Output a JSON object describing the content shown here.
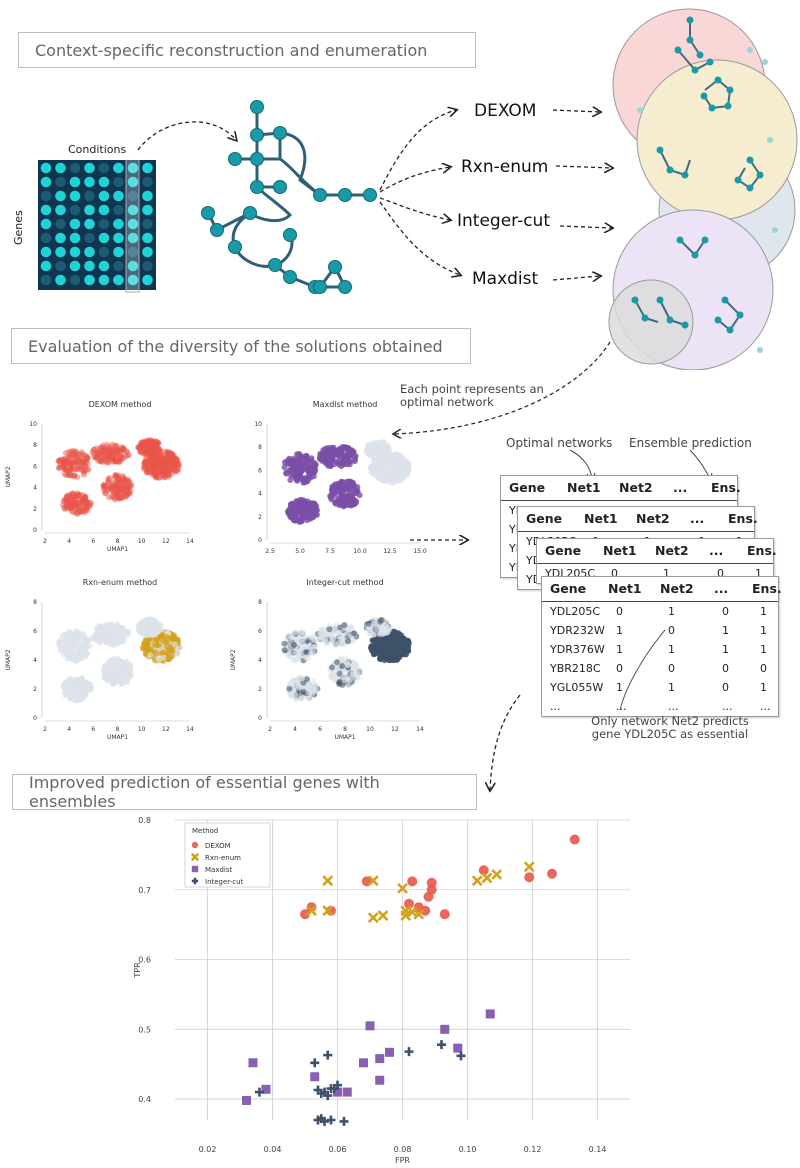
{
  "sections": {
    "reconstruction": "Context-specific reconstruction and enumeration",
    "diversity": "Evaluation of the diversity of the solutions obtained",
    "prediction": "Improved prediction of essential genes with ensembles"
  },
  "matrix": {
    "conditions_label": "Conditions",
    "genes_label": "Genes"
  },
  "methods": [
    "DEXOM",
    "Rxn-enum",
    "Integer-cut",
    "Maxdist"
  ],
  "callouts": {
    "point": [
      "Each point represents an",
      "optimal network"
    ],
    "optimal_networks": "Optimal networks",
    "ensemble_prediction": "Ensemble prediction",
    "net2": [
      "Only network Net2 predicts",
      "gene YDL205C as essential"
    ]
  },
  "umap": [
    {
      "title": "DEXOM method",
      "xlabel": "UMAP1",
      "ylabel": "UMAP2",
      "yticks": [
        "0",
        "2",
        "4",
        "6",
        "8",
        "10"
      ],
      "xticks": [
        "2",
        "4",
        "6",
        "8",
        "10",
        "12",
        "14"
      ]
    },
    {
      "title": "Maxdist method",
      "xlabel": "",
      "ylabel": "",
      "yticks": [
        "0",
        "2",
        "4",
        "6",
        "8",
        "10"
      ],
      "xticks": [
        "2.5",
        "5.0",
        "7.5",
        "10.0",
        "12.5",
        "15.0"
      ]
    },
    {
      "title": "Rxn-enum method",
      "xlabel": "UMAP1",
      "ylabel": "UMAP2",
      "yticks": [
        "0",
        "2",
        "4",
        "6",
        "8"
      ],
      "xticks": [
        "2",
        "4",
        "6",
        "8",
        "10",
        "12",
        "14"
      ]
    },
    {
      "title": "Integer-cut method",
      "xlabel": "UMAP1",
      "ylabel": "UMAP2",
      "yticks": [
        "0",
        "2",
        "4",
        "6",
        "8"
      ],
      "xticks": [
        "2",
        "4",
        "6",
        "8",
        "10",
        "12",
        "14"
      ]
    }
  ],
  "table": {
    "headers": [
      "Gene",
      "Net1",
      "Net2",
      "...",
      "Ens."
    ],
    "rows": [
      [
        "YDL205C",
        "0",
        "1",
        "0",
        "1"
      ],
      [
        "YDR232W",
        "1",
        "0",
        "1",
        "1"
      ],
      [
        "YDR376W",
        "1",
        "1",
        "1",
        "1"
      ],
      [
        "YBR218C",
        "0",
        "0",
        "0",
        "0"
      ],
      [
        "YGL055W",
        "1",
        "1",
        "0",
        "1"
      ],
      [
        "...",
        "...",
        "...",
        "...",
        "..."
      ]
    ]
  },
  "colors": {
    "dexom": "#e8574a",
    "rxn_enum": "#d4a21a",
    "maxdist": "#7b4fa8",
    "integer_cut": "#3d5168",
    "network_node": "#1a9aa6",
    "network_edge": "#2f5f77",
    "matrix_bg": "#0f3550",
    "matrix_on": "#20d3d6"
  },
  "chart_data": {
    "type": "scatter",
    "title": "",
    "xlabel": "FPR",
    "ylabel": "TPR",
    "xlim": [
      0.01,
      0.15
    ],
    "ylim": [
      0.37,
      0.8
    ],
    "xticks": [
      0.02,
      0.04,
      0.06,
      0.08,
      0.1,
      0.12,
      0.14
    ],
    "xtick_labels": [
      "0.02",
      "0.04",
      "0.06",
      "0.08",
      "0.10",
      "0.12",
      "0.14"
    ],
    "yticks": [
      0.4,
      0.5,
      0.6,
      0.7,
      0.8
    ],
    "ytick_labels": [
      "0.4",
      "0.5",
      "0.6",
      "0.7",
      "0.8"
    ],
    "grid": true,
    "legend_title": "Method",
    "legend_position": "top-left",
    "series": [
      {
        "name": "DEXOM",
        "marker": "circle",
        "color": "#e8574a",
        "x": [
          0.05,
          0.052,
          0.058,
          0.069,
          0.083,
          0.082,
          0.085,
          0.087,
          0.088,
          0.089,
          0.089,
          0.093,
          0.105,
          0.119,
          0.126,
          0.133
        ],
        "y": [
          0.665,
          0.675,
          0.67,
          0.712,
          0.712,
          0.68,
          0.675,
          0.67,
          0.69,
          0.7,
          0.71,
          0.665,
          0.728,
          0.718,
          0.723,
          0.772
        ]
      },
      {
        "name": "Rxn-enum",
        "marker": "x",
        "color": "#d4a21a",
        "x": [
          0.052,
          0.057,
          0.057,
          0.071,
          0.071,
          0.074,
          0.08,
          0.081,
          0.081,
          0.083,
          0.085,
          0.103,
          0.106,
          0.109,
          0.119
        ],
        "y": [
          0.67,
          0.67,
          0.713,
          0.713,
          0.66,
          0.663,
          0.702,
          0.67,
          0.663,
          0.668,
          0.665,
          0.713,
          0.717,
          0.722,
          0.733
        ]
      },
      {
        "name": "Maxdist",
        "marker": "square",
        "color": "#7b4fa8",
        "x": [
          0.032,
          0.034,
          0.038,
          0.053,
          0.06,
          0.063,
          0.068,
          0.07,
          0.073,
          0.073,
          0.076,
          0.093,
          0.097,
          0.107
        ],
        "y": [
          0.398,
          0.452,
          0.414,
          0.432,
          0.41,
          0.41,
          0.452,
          0.505,
          0.458,
          0.427,
          0.467,
          0.5,
          0.473,
          0.522
        ]
      },
      {
        "name": "Integer-cut",
        "marker": "plus",
        "color": "#3d5168",
        "x": [
          0.036,
          0.053,
          0.054,
          0.055,
          0.056,
          0.057,
          0.057,
          0.058,
          0.059,
          0.06,
          0.062,
          0.082,
          0.092,
          0.098,
          0.054,
          0.055,
          0.056,
          0.058
        ],
        "y": [
          0.41,
          0.452,
          0.413,
          0.408,
          0.41,
          0.405,
          0.463,
          0.415,
          0.415,
          0.42,
          0.368,
          0.468,
          0.478,
          0.462,
          0.37,
          0.372,
          0.368,
          0.37
        ]
      }
    ]
  }
}
